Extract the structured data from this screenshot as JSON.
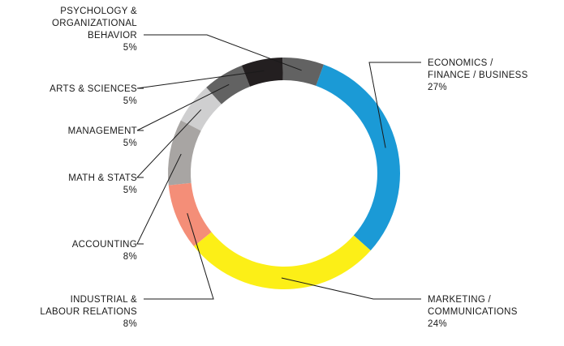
{
  "chart_data": {
    "type": "pie",
    "variant": "donut",
    "legend": "none",
    "slices": [
      {
        "label": "ECONOMICS / FINANCE / BUSINESS",
        "lines": [
          "ECONOMICS /",
          "FINANCE / BUSINESS"
        ],
        "value": 27,
        "value_label": "27%",
        "color": "#1b9ad6",
        "side": "right"
      },
      {
        "label": "MARKETING / COMMUNICATIONS",
        "lines": [
          "MARKETING /",
          "COMMUNICATIONS"
        ],
        "value": 24,
        "value_label": "24%",
        "color": "#fcef17",
        "side": "right"
      },
      {
        "label": "INDUSTRIAL & LABOUR RELATIONS",
        "lines": [
          "INDUSTRIAL &",
          "LABOUR RELATIONS"
        ],
        "value": 8,
        "value_label": "8%",
        "color": "#f48e78",
        "side": "left"
      },
      {
        "label": "ACCOUNTING",
        "lines": [
          "ACCOUNTING"
        ],
        "value": 8,
        "value_label": "8%",
        "color": "#a8a5a3",
        "side": "left"
      },
      {
        "label": "MATH & STATS",
        "lines": [
          "MATH & STATS"
        ],
        "value": 5,
        "value_label": "5%",
        "color": "#cfcfd0",
        "side": "left"
      },
      {
        "label": "MANAGEMENT",
        "lines": [
          "MANAGEMENT"
        ],
        "value": 5,
        "value_label": "5%",
        "color": "#626262",
        "side": "left"
      },
      {
        "label": "ARTS & SCIENCES",
        "lines": [
          "ARTS & SCIENCES"
        ],
        "value": 5,
        "value_label": "5%",
        "color": "#231f20",
        "side": "left"
      },
      {
        "label": "PSYCHOLOGY & ORGANIZATIONAL BEHAVIOR",
        "lines": [
          "PSYCHOLOGY &",
          "ORGANIZATIONAL",
          "BEHAVIOR"
        ],
        "value": 5,
        "value_label": "5%",
        "color": "#626262",
        "side": "left"
      }
    ]
  }
}
